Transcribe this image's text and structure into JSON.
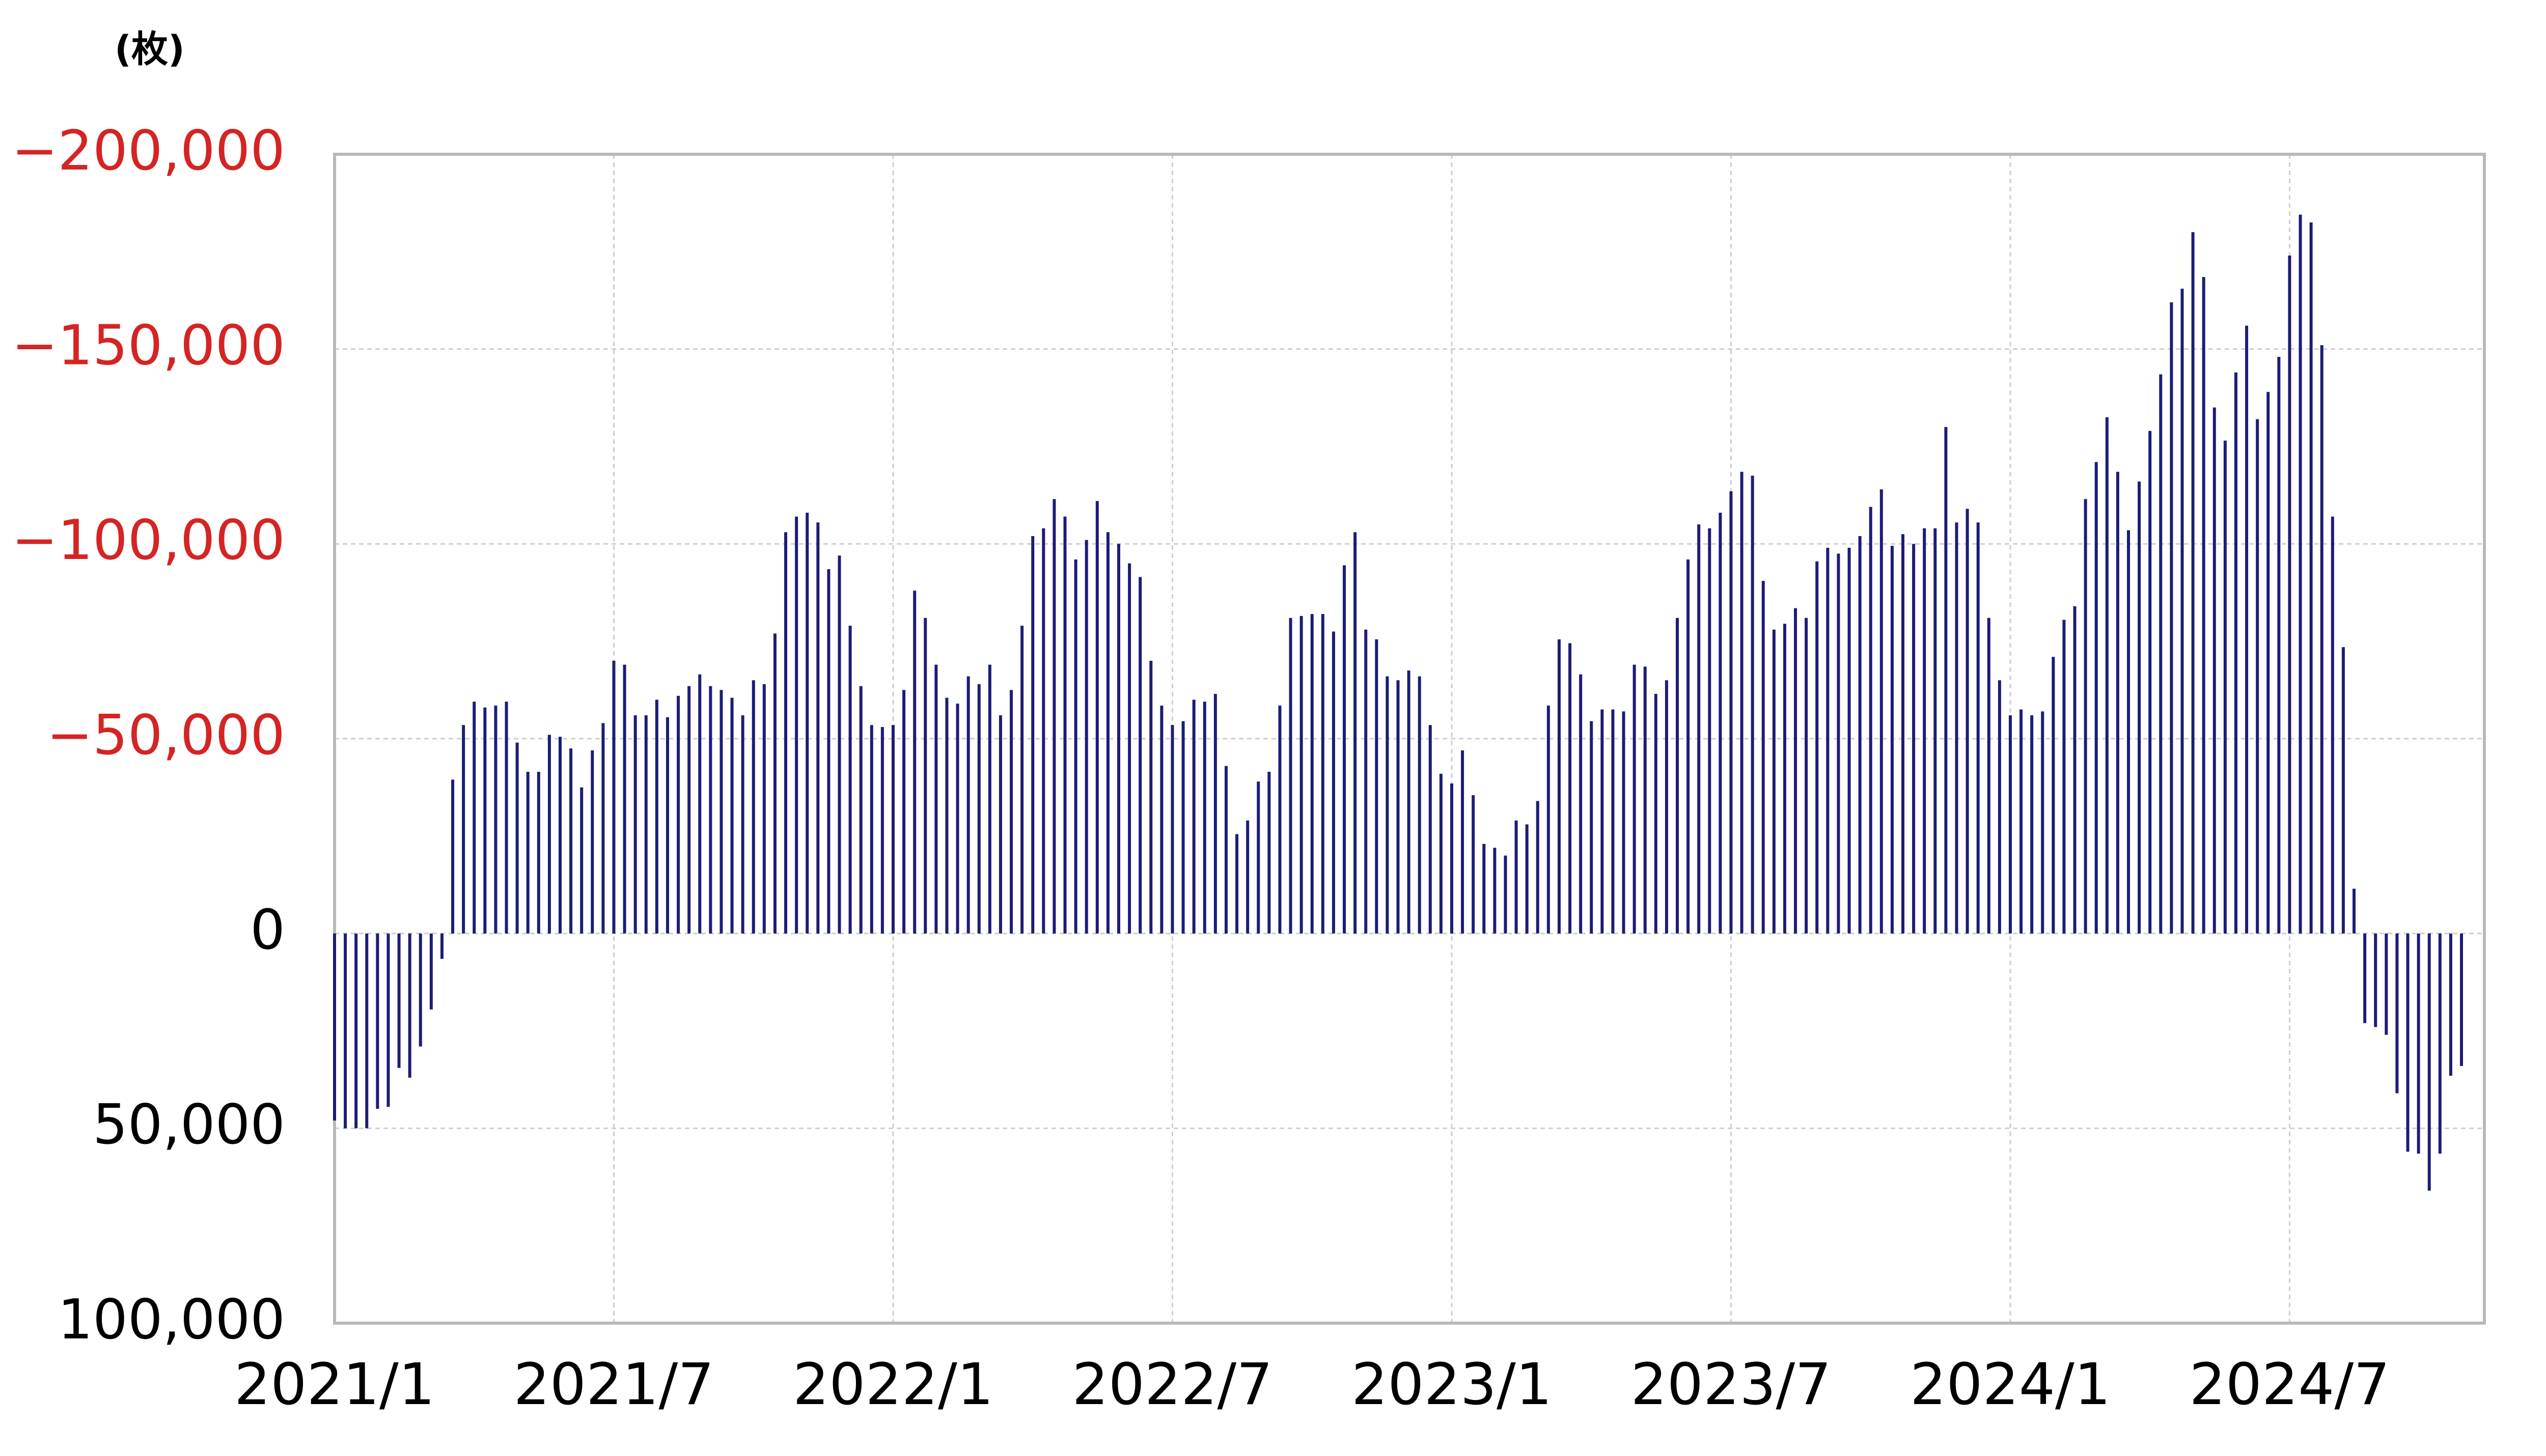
{
  "chart_data": {
    "type": "bar",
    "y_label": "(枚)",
    "color": "#1c1c78",
    "negative_tick_color": "#d42424",
    "tick_color": "#000000",
    "y_inverted": true,
    "grid": true,
    "ylim": [
      -200000,
      100000
    ],
    "yticks": [
      {
        "value": -200000,
        "label": "−200,000"
      },
      {
        "value": -150000,
        "label": "−150,000"
      },
      {
        "value": -100000,
        "label": "−100,000"
      },
      {
        "value": -50000,
        "label": "−50,000"
      },
      0,
      {
        "value": 50000,
        "label": "50,000"
      },
      {
        "value": 100000,
        "label": "100,000"
      }
    ],
    "categories": [
      "2021/1",
      null,
      null,
      null,
      null,
      null,
      null,
      null,
      null,
      null,
      null,
      null,
      null,
      null,
      null,
      null,
      null,
      null,
      null,
      null,
      null,
      null,
      null,
      null,
      null,
      null,
      "2021/7",
      null,
      null,
      null,
      null,
      null,
      null,
      null,
      null,
      null,
      null,
      null,
      null,
      null,
      null,
      null,
      null,
      null,
      null,
      null,
      null,
      null,
      null,
      null,
      null,
      null,
      "2022/1",
      null,
      null,
      null,
      null,
      null,
      null,
      null,
      null,
      null,
      null,
      null,
      null,
      null,
      null,
      null,
      null,
      null,
      null,
      null,
      null,
      null,
      null,
      null,
      null,
      null,
      "2022/7",
      null,
      null,
      null,
      null,
      null,
      null,
      null,
      null,
      null,
      null,
      null,
      null,
      null,
      null,
      null,
      null,
      null,
      null,
      null,
      null,
      null,
      null,
      null,
      null,
      null,
      "2023/1",
      null,
      null,
      null,
      null,
      null,
      null,
      null,
      null,
      null,
      null,
      null,
      null,
      null,
      null,
      null,
      null,
      null,
      null,
      null,
      null,
      null,
      null,
      null,
      null,
      null,
      "2023/7",
      null,
      null,
      null,
      null,
      null,
      null,
      null,
      null,
      null,
      null,
      null,
      null,
      null,
      null,
      null,
      null,
      null,
      null,
      null,
      null,
      null,
      null,
      null,
      null,
      null,
      "2024/1",
      null,
      null,
      null,
      null,
      null,
      null,
      null,
      null,
      null,
      null,
      null,
      null,
      null,
      null,
      null,
      null,
      null,
      null,
      null,
      null,
      null,
      null,
      null,
      null,
      null,
      "2024/7",
      null,
      null,
      null,
      null,
      null,
      null,
      null,
      null,
      null,
      null,
      null,
      null,
      null,
      null,
      null,
      null
    ],
    "values": [
      48000,
      50000,
      50000,
      50000,
      45000,
      44500,
      34500,
      37000,
      29000,
      19500,
      6500,
      -39500,
      -53500,
      -59500,
      -58000,
      -58500,
      -59500,
      -49000,
      -41500,
      -41500,
      -51000,
      -50500,
      -47500,
      -37500,
      -47000,
      -54000,
      -70000,
      -69000,
      -56000,
      -56000,
      -60000,
      -55500,
      -61000,
      -63500,
      -66500,
      -63500,
      -62500,
      -60500,
      -56000,
      -65000,
      -64000,
      -77000,
      -103000,
      -107000,
      -108000,
      -105500,
      -93500,
      -97000,
      -79000,
      -63500,
      -53500,
      -53000,
      -53500,
      -62500,
      -88000,
      -81000,
      -69000,
      -60500,
      -59000,
      -66000,
      -64000,
      -69000,
      -56000,
      -62500,
      -79000,
      -102000,
      -104000,
      -111500,
      -107000,
      -96000,
      -101000,
      -111000,
      -103000,
      -100000,
      -95000,
      -91500,
      -70000,
      -58500,
      -53500,
      -54500,
      -60000,
      -59500,
      -61500,
      -43000,
      -25500,
      -29000,
      -39000,
      -41500,
      -58500,
      -81000,
      -81500,
      -82000,
      -82000,
      -77500,
      -94500,
      -103000,
      -78000,
      -75500,
      -66000,
      -65000,
      -67500,
      -66000,
      -53500,
      -41000,
      -38500,
      -47000,
      -35500,
      -23000,
      -22000,
      -20000,
      -29000,
      -28000,
      -34000,
      -58500,
      -75500,
      -74500,
      -66500,
      -54500,
      -57500,
      -57500,
      -57000,
      -69000,
      -68500,
      -61500,
      -65000,
      -81000,
      -96000,
      -105000,
      -104000,
      -108000,
      -113500,
      -118500,
      -117500,
      -90500,
      -78000,
      -79500,
      -83500,
      -81000,
      -95500,
      -99000,
      -97500,
      -99000,
      -102000,
      -109500,
      -114000,
      -99500,
      -102500,
      -100000,
      -104000,
      -104000,
      -130000,
      -105500,
      -109000,
      -105500,
      -81000,
      -65000,
      -56000,
      -57500,
      -56000,
      -57000,
      -71000,
      -80500,
      -84000,
      -111500,
      -121000,
      -132500,
      -118500,
      -103500,
      -116000,
      -129000,
      -143500,
      -162000,
      -165500,
      -180000,
      -168500,
      -135000,
      -126500,
      -144000,
      -156000,
      -132000,
      -139000,
      -148000,
      -174000,
      -184500,
      -182500,
      -151000,
      -107000,
      -73500,
      -11500,
      23000,
      24000,
      26000,
      41000,
      56000,
      56500,
      66000,
      56500,
      36500,
      34000
    ]
  }
}
